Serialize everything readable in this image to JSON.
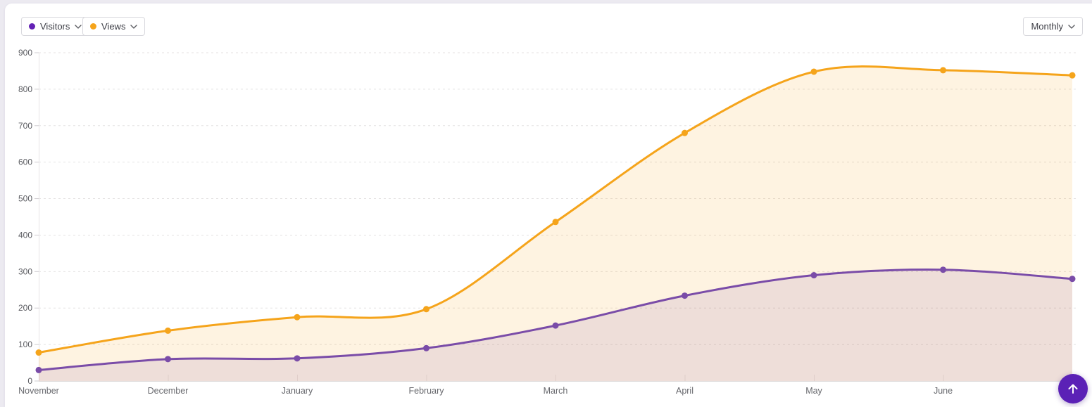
{
  "page": {
    "background": "#ECEAF1",
    "card_background": "#FFFFFF"
  },
  "toolbar": {
    "series_selectors": [
      {
        "label": "Visitors",
        "color": "#6321B5"
      },
      {
        "label": "Views",
        "color": "#F5A41B"
      }
    ],
    "period_selector": {
      "value": "Monthly"
    }
  },
  "chart_data": {
    "type": "area",
    "title": "",
    "x": [
      "November",
      "December",
      "January",
      "February",
      "March",
      "April",
      "May",
      "June",
      ""
    ],
    "series": [
      {
        "name": "Visitors",
        "color": "#7A4CA8",
        "fill": "rgba(122,76,168,0.12)",
        "values": [
          30,
          60,
          62,
          90,
          152,
          234,
          290,
          305,
          280
        ]
      },
      {
        "name": "Views",
        "color": "#F5A41B",
        "fill": "rgba(245,164,27,0.13)",
        "values": [
          78,
          138,
          175,
          197,
          436,
          680,
          848,
          852,
          838
        ]
      }
    ],
    "ylim": [
      0,
      900
    ],
    "ytick_step": 100,
    "grid": "dashed-horizontal",
    "legend_position": "top-left-dropdown-pills",
    "smoothing": "spline",
    "point_markers": true
  },
  "axis_style": {
    "tick_label_color": "#5a5b60",
    "x_label_color": "#67686d",
    "gridline_color": "#e4e2e2",
    "axis_line_color": "#dedbdb"
  },
  "fab": {
    "label": "scroll-to-top",
    "color": "#5B21B6",
    "arrow_glyph": "up"
  }
}
